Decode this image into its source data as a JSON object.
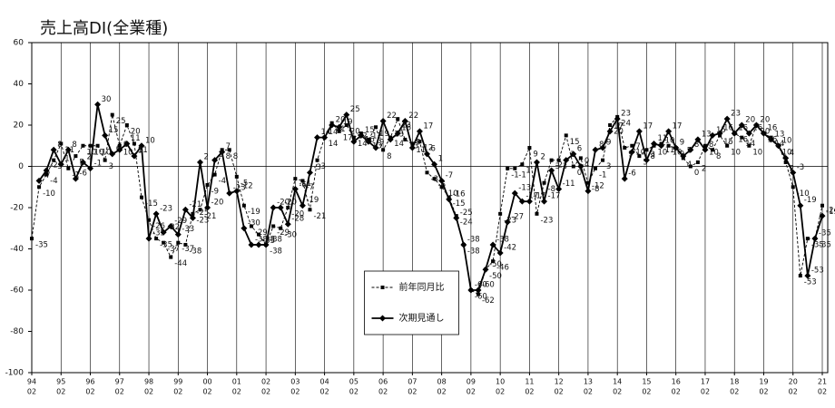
{
  "chart_data": {
    "type": "line",
    "title": "売上高DI(全業種)",
    "categories": [
      [
        "94",
        "02"
      ],
      null,
      null,
      null,
      [
        "95",
        "02"
      ],
      null,
      null,
      null,
      [
        "96",
        "02"
      ],
      null,
      null,
      null,
      [
        "97",
        "02"
      ],
      null,
      null,
      null,
      [
        "98",
        "02"
      ],
      null,
      null,
      null,
      [
        "99",
        "02"
      ],
      null,
      null,
      null,
      [
        "00",
        "02"
      ],
      null,
      null,
      null,
      [
        "01",
        "02"
      ],
      null,
      null,
      null,
      [
        "02",
        "02"
      ],
      null,
      null,
      null,
      [
        "03",
        "02"
      ],
      null,
      null,
      null,
      [
        "04",
        "02"
      ],
      null,
      null,
      null,
      [
        "05",
        "02"
      ],
      null,
      null,
      null,
      [
        "06",
        "02"
      ],
      null,
      null,
      null,
      [
        "07",
        "02"
      ],
      null,
      null,
      null,
      [
        "08",
        "02"
      ],
      null,
      null,
      null,
      [
        "09",
        "02"
      ],
      null,
      null,
      null,
      [
        "10",
        "02"
      ],
      null,
      null,
      null,
      [
        "11",
        "02"
      ],
      null,
      null,
      null,
      [
        "12",
        "02"
      ],
      null,
      null,
      null,
      [
        "13",
        "02"
      ],
      null,
      null,
      null,
      [
        "14",
        "02"
      ],
      null,
      null,
      null,
      [
        "15",
        "02"
      ],
      null,
      null,
      null,
      [
        "16",
        "02"
      ],
      null,
      null,
      null,
      [
        "17",
        "02"
      ],
      null,
      null,
      null,
      [
        "18",
        "02"
      ],
      null,
      null,
      null,
      [
        "19",
        "02"
      ],
      null,
      null,
      null,
      [
        "20",
        "02"
      ],
      null,
      null,
      null,
      [
        "21",
        "02"
      ]
    ],
    "series": [
      {
        "name": "前年同月比",
        "color": "#000000",
        "style": "dashed",
        "marker": "square",
        "values": [
          -35,
          -10,
          -4,
          3,
          11,
          -1,
          5,
          10,
          10,
          10,
          3,
          25,
          10,
          20,
          11,
          -15,
          -26,
          -35,
          -37,
          -44,
          -37,
          -38,
          -23,
          -21,
          -9,
          -4,
          8,
          8,
          -5,
          -19,
          -29,
          -33,
          -38,
          -29,
          -30,
          -20,
          -6,
          -7,
          -21,
          3,
          14,
          21,
          17,
          20,
          14,
          16,
          13,
          19,
          8,
          14,
          23,
          13,
          11,
          12,
          -3,
          -6,
          -10,
          -15,
          -24,
          -38,
          -60,
          -62,
          -50,
          -46,
          -23,
          -1,
          -1,
          1,
          9,
          -23,
          -8,
          3,
          3,
          15,
          0,
          4,
          -8,
          -1,
          3,
          20,
          24,
          9,
          10,
          5,
          8,
          10,
          11,
          10,
          9,
          4,
          0,
          2,
          10,
          8,
          15,
          10,
          16,
          14,
          10,
          20,
          16,
          14,
          10,
          2,
          -10,
          -53,
          -35,
          -35,
          -19
        ]
      },
      {
        "name": "次期見通し",
        "color": "#000000",
        "style": "solid",
        "marker": "diamond",
        "values": [
          null,
          -7,
          -2,
          8,
          1,
          8,
          -6,
          2,
          -1,
          30,
          15,
          6,
          8,
          11,
          5,
          10,
          -35,
          -23,
          -32,
          -29,
          -33,
          -21,
          -25,
          2,
          -20,
          3,
          7,
          -13,
          -12,
          -30,
          -38,
          -38,
          -38,
          -20,
          -20,
          -28,
          -11,
          -19,
          -3,
          14,
          14,
          20,
          19,
          25,
          12,
          15,
          12,
          9,
          22,
          13,
          16,
          22,
          9,
          17,
          6,
          1,
          -7,
          -16,
          -25,
          -38,
          -60,
          -60,
          -50,
          -38,
          -42,
          -27,
          -13,
          -17,
          -17,
          2,
          -17,
          -2,
          -11,
          3,
          6,
          0,
          -12,
          8,
          9,
          17,
          23,
          -6,
          7,
          17,
          3,
          11,
          10,
          17,
          9,
          5,
          8,
          13,
          8,
          15,
          16,
          23,
          16,
          20,
          16,
          20,
          16,
          13,
          10,
          4,
          -3,
          -19,
          -53,
          -35,
          -24
        ]
      }
    ],
    "ylim": [
      -100,
      60
    ],
    "yticks": [
      -100,
      -80,
      -60,
      -40,
      -20,
      0,
      20,
      40,
      60
    ],
    "grid": "x",
    "legend": "lower-center",
    "data_labels": true
  }
}
